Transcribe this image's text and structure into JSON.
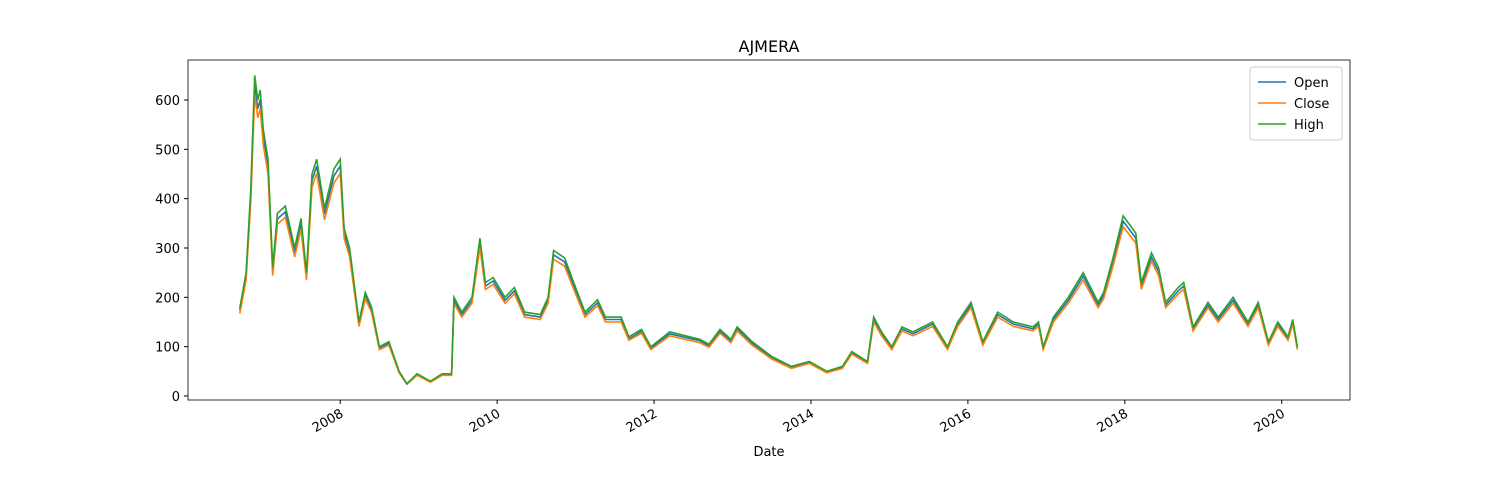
{
  "chart_data": {
    "type": "line",
    "title": "AJMERA",
    "xlabel": "Date",
    "x": [
      2006.72,
      2006.8,
      2006.86,
      2006.91,
      2006.95,
      2006.98,
      2007.02,
      2007.08,
      2007.14,
      2007.2,
      2007.3,
      2007.42,
      2007.5,
      2007.57,
      2007.64,
      2007.7,
      2007.8,
      2007.92,
      2008.0,
      2008.05,
      2008.12,
      2008.2,
      2008.24,
      2008.32,
      2008.4,
      2008.5,
      2008.62,
      2008.75,
      2008.85,
      2008.98,
      2009.15,
      2009.3,
      2009.42,
      2009.45,
      2009.55,
      2009.68,
      2009.78,
      2009.85,
      2009.95,
      2010.1,
      2010.22,
      2010.35,
      2010.55,
      2010.65,
      2010.72,
      2010.86,
      2011.0,
      2011.12,
      2011.28,
      2011.38,
      2011.58,
      2011.68,
      2011.84,
      2011.96,
      2012.2,
      2012.58,
      2012.7,
      2012.84,
      2012.98,
      2013.06,
      2013.25,
      2013.5,
      2013.75,
      2013.98,
      2014.2,
      2014.4,
      2014.52,
      2014.72,
      2014.8,
      2014.9,
      2015.03,
      2015.16,
      2015.3,
      2015.55,
      2015.74,
      2015.87,
      2016.04,
      2016.19,
      2016.38,
      2016.58,
      2016.83,
      2016.9,
      2016.96,
      2017.09,
      2017.28,
      2017.47,
      2017.66,
      2017.73,
      2017.85,
      2017.98,
      2018.14,
      2018.21,
      2018.34,
      2018.43,
      2018.52,
      2018.68,
      2018.75,
      2018.87,
      2019.06,
      2019.19,
      2019.38,
      2019.57,
      2019.7,
      2019.83,
      2019.95,
      2020.08,
      2020.14,
      2020.2
    ],
    "series": [
      {
        "name": "Open",
        "color": "#1f77b4",
        "values": [
          173,
          243,
          407,
          631,
          582,
          601,
          524,
          466,
          252,
          359,
          373,
          291,
          349,
          243,
          437,
          466,
          369,
          446,
          466,
          330,
          291,
          194,
          146,
          204,
          175,
          97,
          107,
          49,
          24,
          44,
          29,
          44,
          44,
          194,
          165,
          194,
          310,
          223,
          233,
          194,
          213,
          165,
          160,
          194,
          286,
          272,
          213,
          165,
          189,
          155,
          155,
          116,
          131,
          97,
          126,
          112,
          102,
          131,
          112,
          136,
          107,
          78,
          58,
          68,
          49,
          58,
          87,
          68,
          155,
          126,
          97,
          136,
          126,
          146,
          97,
          146,
          184,
          107,
          165,
          146,
          136,
          146,
          97,
          155,
          194,
          243,
          184,
          204,
          272,
          354,
          320,
          223,
          281,
          252,
          184,
          213,
          223,
          136,
          184,
          155,
          194,
          146,
          184,
          107,
          146,
          116,
          150,
          97
        ]
      },
      {
        "name": "Close",
        "color": "#ff7f0e",
        "values": [
          167,
          235,
          395,
          611,
          564,
          583,
          508,
          451,
          244,
          348,
          362,
          282,
          338,
          235,
          423,
          451,
          357,
          432,
          451,
          320,
          282,
          188,
          141,
          197,
          169,
          94,
          103,
          47,
          24,
          42,
          28,
          42,
          42,
          188,
          160,
          188,
          301,
          216,
          226,
          188,
          207,
          160,
          155,
          188,
          277,
          263,
          207,
          160,
          183,
          150,
          150,
          113,
          127,
          94,
          122,
          108,
          99,
          127,
          108,
          132,
          103,
          75,
          56,
          66,
          47,
          56,
          85,
          66,
          150,
          122,
          94,
          132,
          122,
          141,
          94,
          141,
          179,
          103,
          160,
          141,
          132,
          141,
          94,
          150,
          188,
          235,
          179,
          197,
          263,
          343,
          310,
          216,
          273,
          244,
          179,
          207,
          216,
          132,
          179,
          150,
          188,
          141,
          179,
          103,
          141,
          113,
          146,
          94
        ]
      },
      {
        "name": "High",
        "color": "#2ca02c",
        "values": [
          178,
          250,
          420,
          650,
          600,
          620,
          540,
          480,
          260,
          370,
          385,
          300,
          360,
          250,
          450,
          480,
          380,
          460,
          480,
          340,
          300,
          200,
          150,
          210,
          180,
          100,
          110,
          50,
          25,
          45,
          30,
          45,
          45,
          200,
          170,
          200,
          320,
          230,
          240,
          200,
          220,
          170,
          165,
          200,
          295,
          280,
          220,
          170,
          195,
          160,
          160,
          120,
          135,
          100,
          130,
          115,
          105,
          135,
          115,
          140,
          110,
          80,
          60,
          70,
          50,
          60,
          90,
          70,
          160,
          130,
          100,
          140,
          130,
          150,
          100,
          150,
          190,
          110,
          170,
          150,
          140,
          150,
          100,
          160,
          200,
          250,
          190,
          210,
          280,
          365,
          330,
          230,
          290,
          260,
          190,
          220,
          230,
          140,
          190,
          160,
          200,
          150,
          190,
          110,
          150,
          120,
          155,
          100
        ]
      }
    ],
    "xlim": [
      2006.06,
      2020.87
    ],
    "xticks": [
      2008,
      2010,
      2012,
      2014,
      2016,
      2018,
      2020
    ],
    "ylim": [
      -8.1,
      681
    ],
    "yticks": [
      0,
      100,
      200,
      300,
      400,
      500,
      600
    ],
    "legend": "upper right",
    "grid": false
  }
}
